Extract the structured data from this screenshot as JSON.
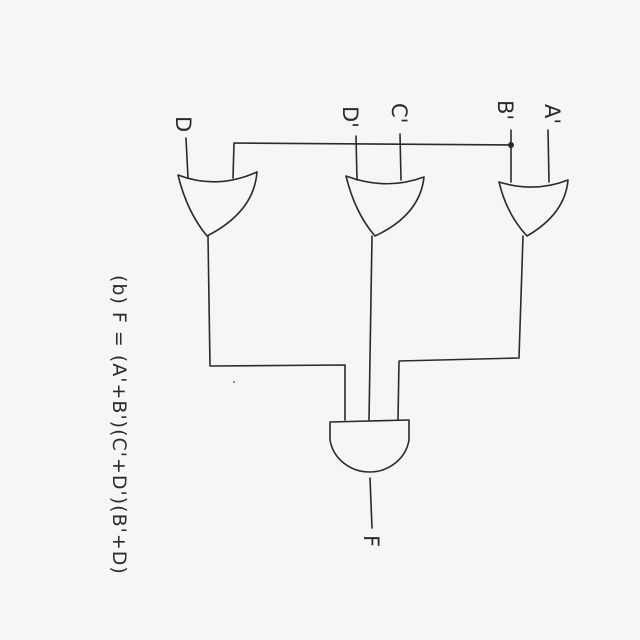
{
  "inputs": {
    "d": "D",
    "d_prime": "D'",
    "c_prime": "C'",
    "b_prime": "B'",
    "a_prime": "A'"
  },
  "output": {
    "f": "F"
  },
  "gates": {
    "or_1": "OR",
    "or_2": "OR",
    "or_3": "OR",
    "and_1": "AND"
  },
  "expression": "(b) F = (A'+B')(C'+D')(B'+D)"
}
